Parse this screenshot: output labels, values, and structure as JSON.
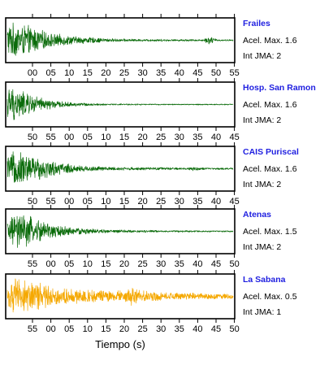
{
  "chart_data": {
    "type": "line",
    "xlabel": "Tiempo (s)",
    "series": [
      {
        "name": "Frailes",
        "color": "#0a6b0a",
        "amax_label": "Acel. Max. 1.6",
        "jma_label": "Int JMA: 2",
        "acel_max": 1.6,
        "jma": 2,
        "ticks": [
          "00",
          "05",
          "10",
          "15",
          "20",
          "25",
          "30",
          "35",
          "40",
          "45",
          "50",
          "55"
        ],
        "envelope": [
          0.95,
          0.9,
          0.85,
          0.75,
          0.6,
          0.45,
          0.35,
          0.3,
          0.25,
          0.2,
          0.18,
          0.15,
          0.12,
          0.1,
          0.08,
          0.08,
          0.07,
          0.06,
          0.06,
          0.07,
          0.06,
          0.05,
          0.05,
          0.06,
          0.05,
          0.05,
          0.22,
          0.05,
          0.04,
          0.04
        ]
      },
      {
        "name": "Hosp. San Ramon",
        "color": "#0a6b0a",
        "amax_label": "Acel. Max. 1.6",
        "jma_label": "Int JMA: 2",
        "acel_max": 1.6,
        "jma": 2,
        "ticks": [
          "50",
          "55",
          "00",
          "05",
          "10",
          "15",
          "20",
          "25",
          "30",
          "35",
          "40",
          "45"
        ],
        "envelope": [
          0.95,
          0.9,
          0.7,
          0.55,
          0.4,
          0.3,
          0.22,
          0.16,
          0.12,
          0.1,
          0.08,
          0.06,
          0.05,
          0.05,
          0.04,
          0.04,
          0.04,
          0.04,
          0.03,
          0.03,
          0.03,
          0.03,
          0.03,
          0.03,
          0.03,
          0.03,
          0.03,
          0.03,
          0.03,
          0.03
        ]
      },
      {
        "name": "CAIS Puriscal",
        "color": "#0a6b0a",
        "amax_label": "Acel. Max. 1.6",
        "jma_label": "Int JMA: 2",
        "acel_max": 1.6,
        "jma": 2,
        "ticks": [
          "50",
          "55",
          "00",
          "05",
          "10",
          "15",
          "20",
          "25",
          "30",
          "35",
          "40",
          "45"
        ],
        "envelope": [
          0.7,
          0.95,
          0.9,
          0.75,
          0.6,
          0.5,
          0.4,
          0.32,
          0.26,
          0.2,
          0.16,
          0.14,
          0.12,
          0.1,
          0.09,
          0.09,
          0.08,
          0.08,
          0.07,
          0.07,
          0.08,
          0.07,
          0.06,
          0.06,
          0.12,
          0.06,
          0.05,
          0.05,
          0.05,
          0.05
        ]
      },
      {
        "name": "Atenas",
        "color": "#0a6b0a",
        "amax_label": "Acel. Max. 1.5",
        "jma_label": "Int JMA: 2",
        "acel_max": 1.5,
        "jma": 2,
        "ticks": [
          "55",
          "00",
          "05",
          "10",
          "15",
          "20",
          "25",
          "30",
          "35",
          "40",
          "45",
          "50"
        ],
        "envelope": [
          0.6,
          0.95,
          0.9,
          0.8,
          0.65,
          0.5,
          0.38,
          0.3,
          0.24,
          0.2,
          0.16,
          0.13,
          0.11,
          0.09,
          0.08,
          0.08,
          0.07,
          0.06,
          0.06,
          0.06,
          0.05,
          0.05,
          0.05,
          0.05,
          0.05,
          0.04,
          0.04,
          0.04,
          0.04,
          0.04
        ]
      },
      {
        "name": "La Sabana",
        "color": "#f5a800",
        "amax_label": "Acel. Max. 0.5",
        "jma_label": "Int JMA: 1",
        "acel_max": 0.5,
        "jma": 1,
        "ticks": [
          "55",
          "00",
          "05",
          "10",
          "15",
          "20",
          "25",
          "30",
          "35",
          "40",
          "45",
          "50"
        ],
        "envelope": [
          0.6,
          0.95,
          0.95,
          0.85,
          0.75,
          0.65,
          0.55,
          0.45,
          0.4,
          0.38,
          0.36,
          0.4,
          0.35,
          0.32,
          0.3,
          0.32,
          0.55,
          0.35,
          0.3,
          0.25,
          0.22,
          0.2,
          0.2,
          0.18,
          0.18,
          0.16,
          0.15,
          0.15,
          0.14,
          0.14
        ]
      }
    ]
  }
}
